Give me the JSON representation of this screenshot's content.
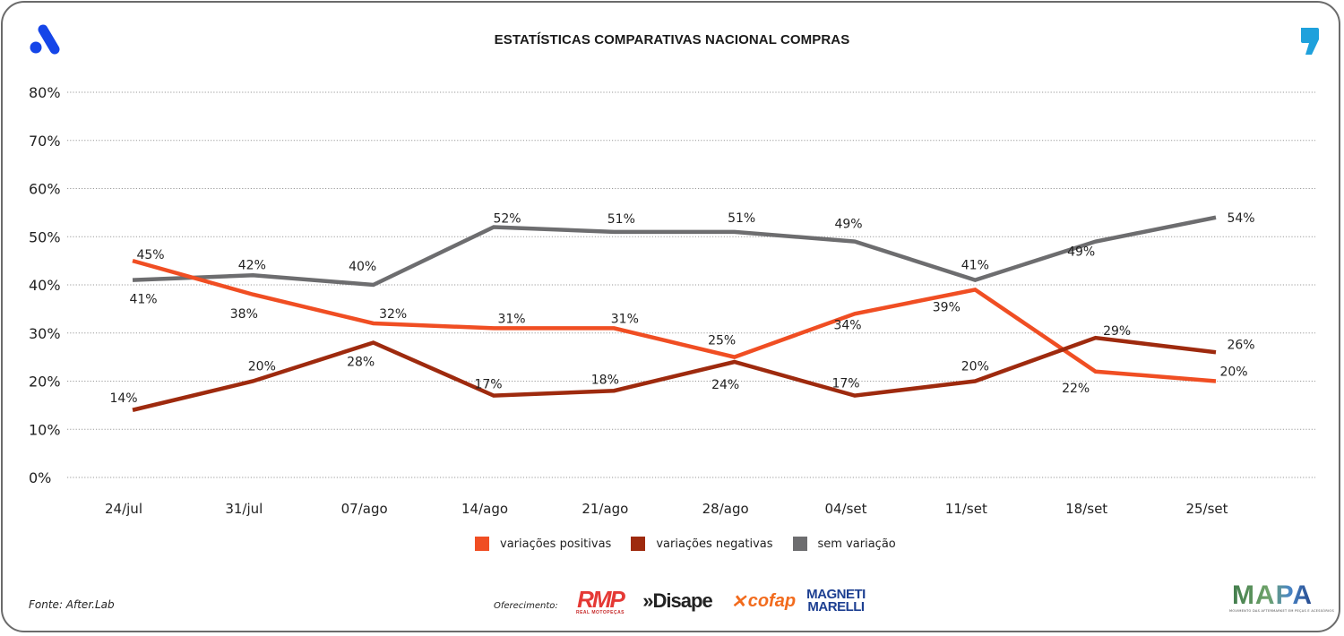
{
  "header": {
    "title": "ESTATÍSTICAS COMPARATIVAS NACIONAL COMPRAS",
    "left_logo_icon": "brand-a-logo-icon",
    "right_logo_icon": "comma-quote-icon"
  },
  "colors": {
    "positive": "#f04e23",
    "negative": "#9e2a0e",
    "neutral": "#6d6d6f",
    "brand_blue": "#1545e8",
    "quote_blue": "#1fa1dc"
  },
  "chart_data": {
    "type": "line",
    "title": "ESTATÍSTICAS COMPARATIVAS NACIONAL COMPRAS",
    "xlabel": "",
    "ylabel": "",
    "x": [
      "24/jul",
      "31/jul",
      "07/ago",
      "14/ago",
      "21/ago",
      "28/ago",
      "04/set",
      "11/set",
      "18/set",
      "25/set"
    ],
    "ylim": [
      0,
      80
    ],
    "yticks": [
      0,
      10,
      20,
      30,
      40,
      50,
      60,
      70,
      80
    ],
    "ytick_labels": [
      "0%",
      "10%",
      "20%",
      "30%",
      "40%",
      "50%",
      "60%",
      "70%",
      "80%"
    ],
    "grid": "horizontal dotted",
    "legend_position": "bottom-center",
    "series": [
      {
        "name": "variações positivas",
        "color_key": "positive",
        "values": [
          45,
          38,
          32,
          31,
          31,
          25,
          34,
          39,
          22,
          20
        ],
        "labels": [
          "45%",
          "38%",
          "32%",
          "31%",
          "31%",
          "25%",
          "34%",
          "39%",
          "22%",
          "20%"
        ]
      },
      {
        "name": "variações negativas",
        "color_key": "negative",
        "values": [
          14,
          20,
          28,
          17,
          18,
          24,
          17,
          20,
          29,
          26
        ],
        "labels": [
          "14%",
          "20%",
          "28%",
          "17%",
          "18%",
          "24%",
          "17%",
          "20%",
          "29%",
          "26%"
        ]
      },
      {
        "name": "sem variação",
        "color_key": "neutral",
        "values": [
          41,
          42,
          40,
          52,
          51,
          51,
          49,
          41,
          49,
          54
        ],
        "labels": [
          "41%",
          "42%",
          "40%",
          "52%",
          "51%",
          "51%",
          "49%",
          "41%",
          "49%",
          "54%"
        ]
      }
    ]
  },
  "legend": [
    {
      "label": "variações positivas",
      "color_key": "positive"
    },
    {
      "label": "variações negativas",
      "color_key": "negative"
    },
    {
      "label": "sem variação",
      "color_key": "neutral"
    }
  ],
  "footer": {
    "source": "Fonte: After.Lab",
    "sponsor_label": "Oferecimento:",
    "sponsors": [
      {
        "name": "RMP",
        "tagline": "REAL MOTOPEÇAS"
      },
      {
        "name": "»Disape"
      },
      {
        "name": "cofap"
      },
      {
        "name_line1": "MAGNETI",
        "name_line2": "MARELLI"
      }
    ],
    "right_logo": {
      "name": "MAPA",
      "tagline": "MOVIMENTO DAS AFTERMARKET EM PEÇAS E ACESSÓRIOS"
    }
  }
}
